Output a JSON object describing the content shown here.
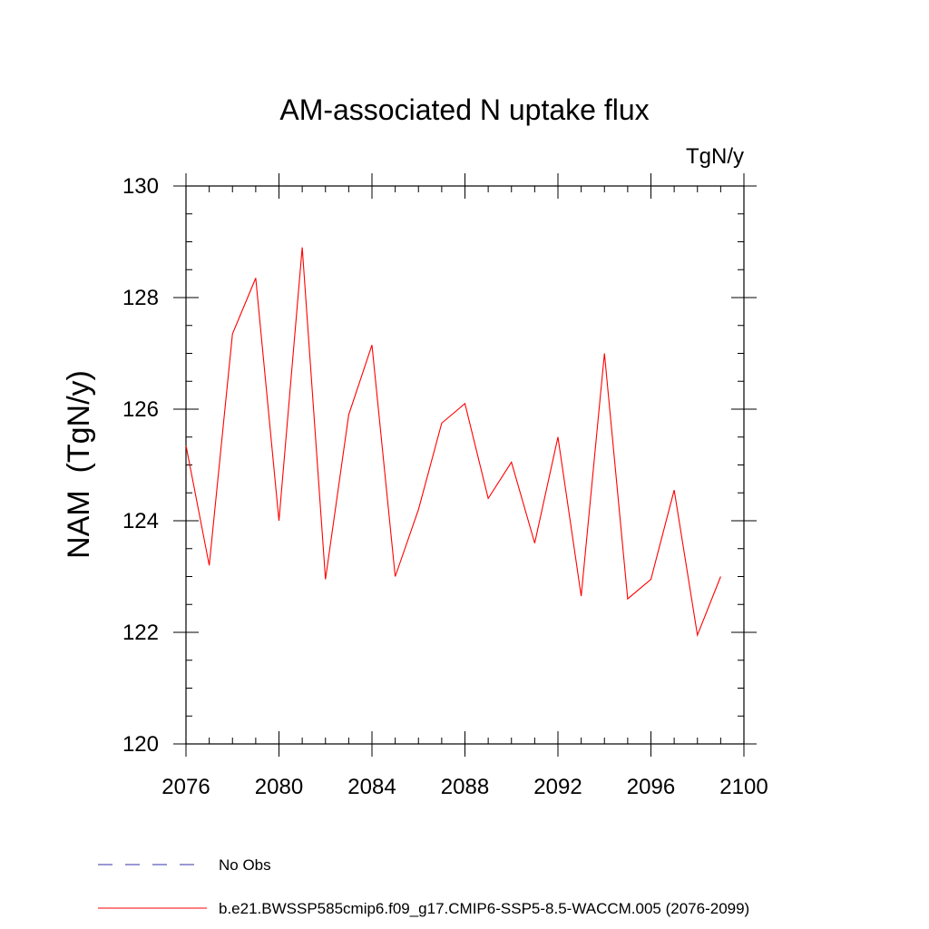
{
  "chart_data": {
    "type": "line",
    "title": "AM-associated N uptake flux",
    "units_label": "TgN/y",
    "ylabel": "NAM  (TgN/y)",
    "xlabel": "",
    "xlim": [
      2076,
      2100
    ],
    "ylim": [
      120,
      130
    ],
    "x_ticks": [
      2076,
      2080,
      2084,
      2088,
      2092,
      2096,
      2100
    ],
    "y_ticks": [
      120,
      122,
      124,
      126,
      128,
      130
    ],
    "x_minor_step": 1,
    "y_minor_step": 0.5,
    "grid": false,
    "series": [
      {
        "name": "b.e21.BWSSP585cmip6.f09_g17.CMIP6-SSP5-8.5-WACCM.005 (2076-2099)",
        "color": "#ff0000",
        "dash": "solid",
        "x": [
          2076,
          2077,
          2078,
          2079,
          2080,
          2081,
          2082,
          2083,
          2084,
          2085,
          2086,
          2087,
          2088,
          2089,
          2090,
          2091,
          2092,
          2093,
          2094,
          2095,
          2096,
          2097,
          2098,
          2099
        ],
        "values": [
          125.35,
          123.2,
          127.35,
          128.35,
          124.0,
          128.9,
          122.95,
          125.9,
          127.15,
          123.0,
          124.2,
          125.75,
          126.1,
          124.4,
          125.05,
          123.6,
          125.5,
          122.65,
          127.0,
          122.6,
          122.95,
          124.55,
          121.95,
          123.0
        ]
      }
    ],
    "legend": [
      {
        "label": "No Obs",
        "color": "#3333aa",
        "dash": "dashed"
      },
      {
        "label": "b.e21.BWSSP585cmip6.f09_g17.CMIP6-SSP5-8.5-WACCM.005 (2076-2099)",
        "color": "#ff0000",
        "dash": "solid"
      }
    ],
    "legend_position": "bottom-left"
  }
}
